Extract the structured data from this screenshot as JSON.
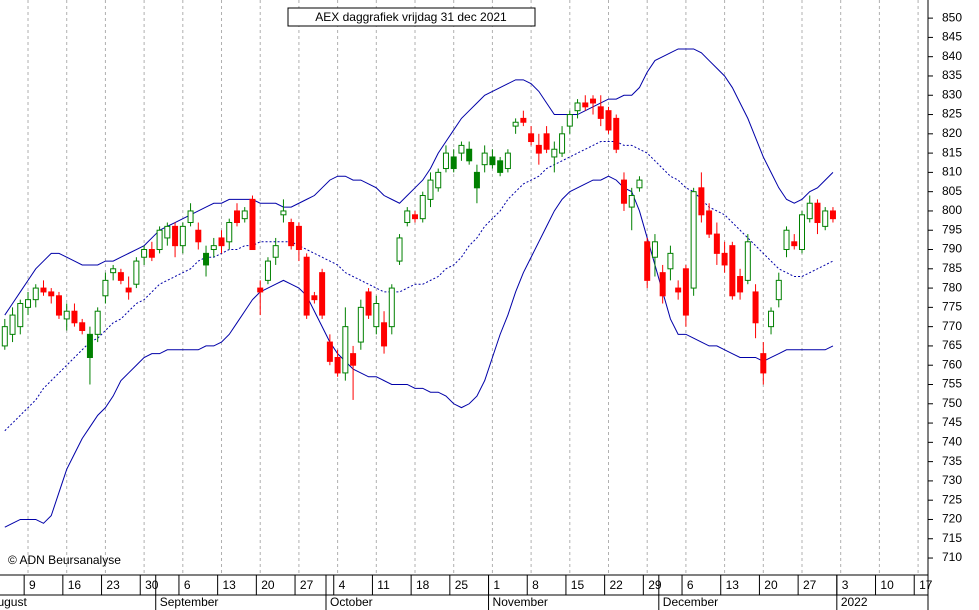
{
  "chart_data": {
    "type": "candlestick",
    "title": "AEX daggrafiek vrijdag 31 dec 2021",
    "credit": "© ADN Beursanalyse",
    "xlim": [
      -0.62,
      119.28
    ],
    "ylim": [
      705.6,
      854.7
    ],
    "yticks": [
      710,
      715,
      720,
      725,
      730,
      735,
      740,
      745,
      750,
      755,
      760,
      765,
      770,
      775,
      780,
      785,
      790,
      795,
      800,
      805,
      810,
      815,
      820,
      825,
      830,
      835,
      840,
      845,
      850
    ],
    "xticks": [
      {
        "value": 3,
        "label": "9"
      },
      {
        "value": 8,
        "label": "16"
      },
      {
        "value": 13,
        "label": "23"
      },
      {
        "value": 18,
        "label": "30"
      },
      {
        "value": 23,
        "label": "6"
      },
      {
        "value": 28,
        "label": "13"
      },
      {
        "value": 33,
        "label": "20"
      },
      {
        "value": 38,
        "label": "27"
      },
      {
        "value": 43,
        "label": "4"
      },
      {
        "value": 48,
        "label": "11"
      },
      {
        "value": 53,
        "label": "18"
      },
      {
        "value": 58,
        "label": "25"
      },
      {
        "value": 63,
        "label": "1"
      },
      {
        "value": 68,
        "label": "8"
      },
      {
        "value": 73,
        "label": "15"
      },
      {
        "value": 78,
        "label": "22"
      },
      {
        "value": 83,
        "label": "29"
      },
      {
        "value": 88,
        "label": "6"
      },
      {
        "value": 93,
        "label": "13"
      },
      {
        "value": 98,
        "label": "20"
      },
      {
        "value": 103,
        "label": "27"
      },
      {
        "value": 108,
        "label": "3"
      },
      {
        "value": 113,
        "label": "10"
      },
      {
        "value": 118,
        "label": "17"
      }
    ],
    "months": [
      {
        "value": -2,
        "label": "August"
      },
      {
        "value": 20,
        "label": "September"
      },
      {
        "value": 42,
        "label": "October"
      },
      {
        "value": 63,
        "label": "November"
      },
      {
        "value": 85,
        "label": "December"
      },
      {
        "value": 108,
        "label": "2022"
      }
    ],
    "grid": true,
    "up_color": "#008000",
    "down_color": "#ff0000",
    "open": [
      765,
      768,
      770,
      775,
      777,
      780,
      779,
      778,
      772,
      774,
      771,
      762,
      768,
      778,
      784,
      784,
      780,
      781,
      788,
      790,
      790,
      793,
      796,
      791,
      797,
      795,
      786,
      790,
      793,
      792,
      800,
      798,
      803,
      780,
      782,
      788,
      799,
      797,
      796,
      788,
      778,
      784,
      766,
      762,
      758,
      763,
      766,
      779,
      770,
      771,
      770,
      787,
      797,
      799,
      798,
      803,
      806,
      811,
      811,
      815,
      813,
      806,
      812,
      812,
      810,
      811,
      822,
      824,
      820,
      817,
      820,
      814,
      815,
      822,
      826,
      828,
      829,
      827,
      826,
      824,
      808,
      801,
      806,
      792,
      788,
      784,
      785,
      780,
      785,
      780,
      806,
      800,
      794,
      789,
      791,
      783,
      782,
      779,
      763,
      770,
      777,
      790,
      792,
      790,
      798,
      802,
      796,
      800
    ],
    "high": [
      772,
      775,
      777,
      779,
      781,
      782,
      780,
      779,
      776,
      776,
      772,
      770,
      775,
      784,
      786,
      785,
      783,
      788,
      791,
      792,
      796,
      797,
      797,
      797,
      802,
      797,
      791,
      793,
      795,
      798,
      802,
      801,
      804,
      782,
      788,
      793,
      803,
      798,
      797,
      789,
      779,
      785,
      768,
      764,
      775,
      765,
      777,
      780,
      778,
      774,
      781,
      794,
      801,
      800,
      805,
      810,
      811,
      817,
      816,
      818,
      818,
      812,
      817,
      816,
      814,
      816,
      824,
      826,
      822,
      820,
      822,
      818,
      822,
      826,
      829,
      830,
      830,
      830,
      827,
      825,
      810,
      806,
      809,
      793,
      794,
      786,
      791,
      782,
      786,
      806,
      810,
      802,
      797,
      792,
      792,
      785,
      794,
      781,
      766,
      775,
      784,
      796,
      794,
      800,
      804,
      803,
      801,
      801
    ],
    "low": [
      764,
      766,
      768,
      773,
      775,
      778,
      776,
      772,
      769,
      770,
      768,
      755,
      766,
      776,
      782,
      781,
      777,
      780,
      786,
      787,
      789,
      791,
      788,
      789,
      796,
      790,
      783,
      788,
      789,
      790,
      796,
      797,
      790,
      773,
      781,
      786,
      797,
      790,
      787,
      772,
      776,
      772,
      760,
      757,
      756,
      751,
      764,
      772,
      768,
      763,
      768,
      786,
      796,
      797,
      797,
      801,
      805,
      810,
      810,
      813,
      812,
      802,
      810,
      811,
      809,
      810,
      820,
      822,
      817,
      812,
      815,
      810,
      814,
      820,
      824,
      826,
      825,
      822,
      820,
      815,
      800,
      795,
      805,
      780,
      783,
      776,
      782,
      777,
      770,
      778,
      797,
      793,
      786,
      784,
      777,
      777,
      781,
      767,
      755,
      768,
      775,
      788,
      790,
      789,
      797,
      794,
      795,
      797
    ],
    "close": [
      770,
      773,
      776,
      777,
      780,
      779,
      778,
      773,
      774,
      771,
      769,
      768,
      774,
      782,
      785,
      782,
      779,
      787,
      790,
      788,
      795,
      796,
      791,
      796,
      800,
      792,
      789,
      791,
      791,
      797,
      797,
      800,
      790,
      779,
      787,
      791,
      800,
      791,
      790,
      773,
      777,
      773,
      761,
      758,
      770,
      760,
      775,
      773,
      776,
      765,
      780,
      793,
      800,
      798,
      804,
      808,
      810,
      815,
      814,
      817,
      816,
      810,
      815,
      814,
      813,
      815,
      823,
      823,
      818,
      815,
      816,
      816,
      820,
      825,
      828,
      827,
      828,
      824,
      821,
      816,
      802,
      804,
      808,
      782,
      792,
      778,
      789,
      779,
      773,
      805,
      799,
      794,
      789,
      786,
      778,
      779,
      792,
      771,
      758,
      774,
      782,
      795,
      791,
      799,
      802,
      797,
      800,
      798
    ],
    "bands": [
      {
        "color": "#0000a8",
        "style": "solid",
        "values": [
          773,
          776,
          779,
          782,
          785,
          787,
          789,
          789,
          788,
          787,
          786,
          786,
          786,
          787,
          787,
          788,
          789,
          790,
          791,
          793,
          795,
          796,
          797,
          798,
          799,
          800,
          801,
          802,
          802,
          803,
          803,
          803,
          803,
          802,
          802,
          802,
          801,
          801,
          802,
          803,
          804,
          806,
          808,
          809,
          809,
          808,
          808,
          807,
          806,
          804,
          803,
          802,
          804,
          806,
          808,
          811,
          815,
          818,
          821,
          824,
          826,
          828,
          830,
          831,
          832,
          833,
          834,
          834,
          833,
          831,
          828,
          825,
          825,
          825,
          825,
          826,
          827,
          828,
          829,
          829,
          830,
          830,
          832,
          836,
          839,
          840,
          841,
          842,
          842,
          842,
          841,
          839,
          837,
          835,
          832,
          828,
          824,
          819,
          814,
          810,
          806,
          803,
          802,
          803,
          805,
          806,
          808,
          810
        ]
      },
      {
        "color": "#0000a8",
        "style": "dashed",
        "values": [
          743,
          745,
          747,
          749,
          751,
          754,
          756,
          758,
          760,
          762,
          764,
          766,
          767,
          769,
          771,
          772,
          774,
          776,
          777,
          779,
          781,
          782,
          783,
          784,
          785,
          787,
          788,
          788,
          789,
          790,
          790,
          791,
          791,
          792,
          792,
          792,
          792,
          792,
          791,
          790,
          789,
          788,
          787,
          786,
          784,
          783,
          782,
          781,
          780,
          779,
          779,
          779,
          780,
          781,
          781,
          782,
          783,
          785,
          786,
          788,
          791,
          793,
          796,
          798,
          800,
          803,
          805,
          807,
          808,
          809,
          811,
          812,
          813,
          814,
          815,
          816,
          817,
          818,
          818,
          818,
          817,
          817,
          816,
          815,
          813,
          811,
          809,
          808,
          806,
          805,
          803,
          801,
          800,
          799,
          797,
          795,
          793,
          791,
          789,
          787,
          785,
          784,
          783,
          783,
          784,
          785,
          786,
          787
        ]
      },
      {
        "color": "#0000a8",
        "style": "solid",
        "values": [
          718,
          719,
          720,
          720,
          720,
          719,
          721,
          727,
          733,
          737,
          741,
          744,
          747,
          749,
          752,
          756,
          758,
          760,
          762,
          763,
          763,
          764,
          764,
          764,
          764,
          764,
          765,
          765,
          766,
          768,
          771,
          774,
          777,
          779,
          780,
          781,
          782,
          781,
          780,
          778,
          774,
          770,
          766,
          763,
          761,
          759,
          758,
          757,
          757,
          756,
          755,
          755,
          755,
          754,
          754,
          753,
          753,
          752,
          750,
          749,
          750,
          752,
          756,
          762,
          768,
          773,
          779,
          784,
          788,
          792,
          796,
          800,
          803,
          805,
          806,
          807,
          808,
          808,
          809,
          808,
          806,
          805,
          800,
          793,
          786,
          779,
          772,
          768,
          768,
          767,
          766,
          765,
          765,
          764,
          763,
          762,
          762,
          762,
          761,
          762,
          763,
          764,
          764,
          764,
          764,
          764,
          764,
          765
        ]
      }
    ]
  }
}
